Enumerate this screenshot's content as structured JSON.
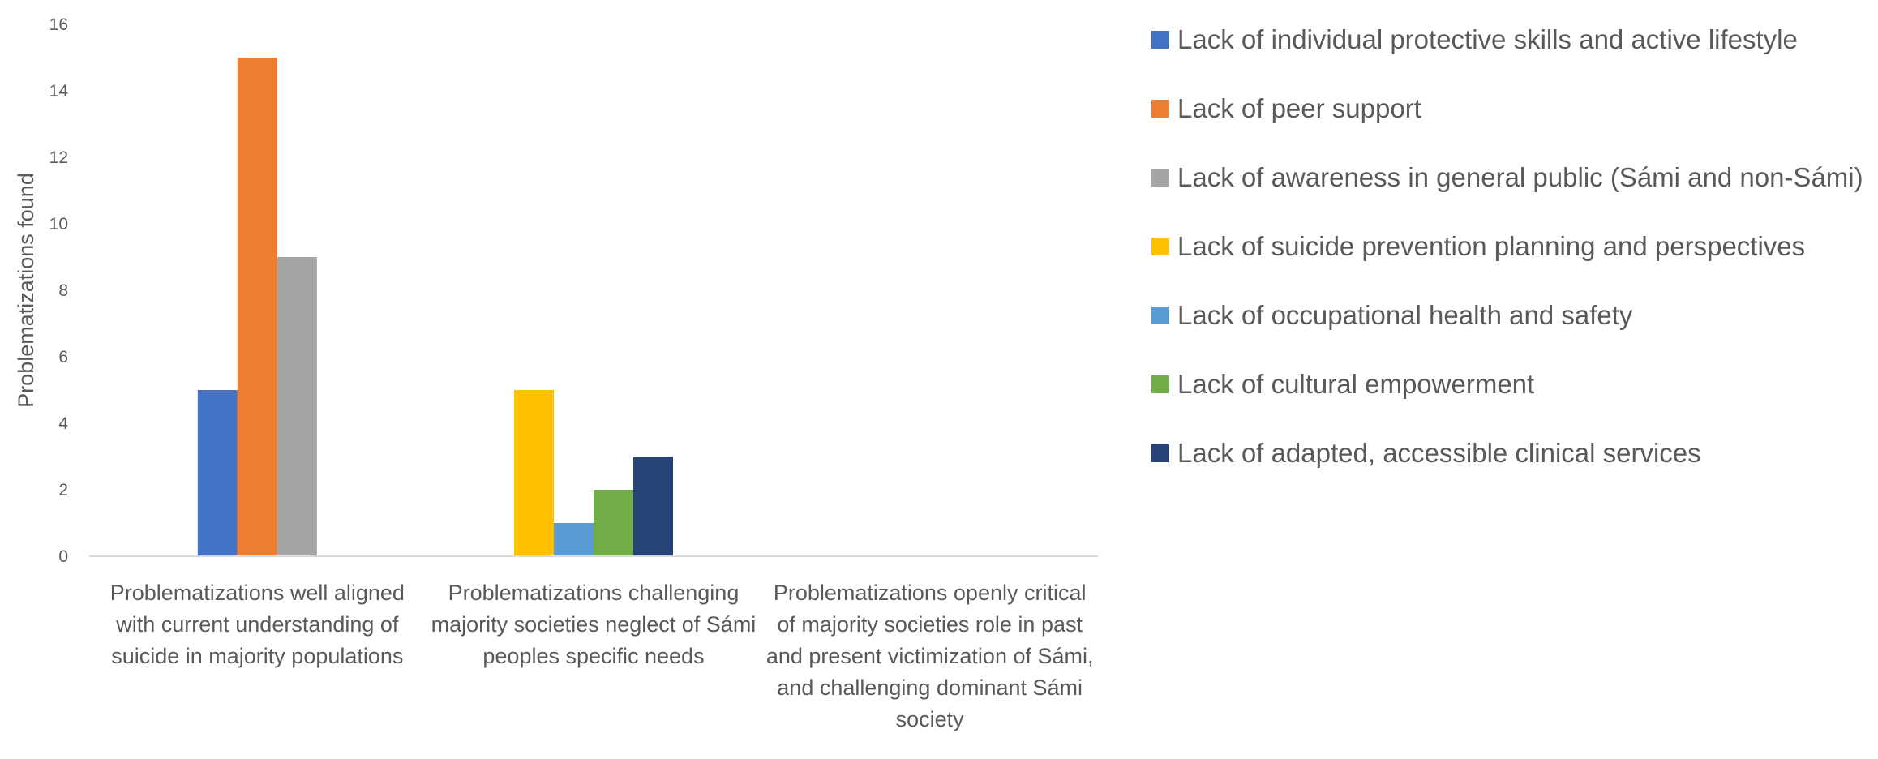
{
  "chart_data": {
    "type": "bar",
    "title": "",
    "xlabel": "",
    "ylabel": "Problematizations found",
    "ylim": [
      0,
      16
    ],
    "yticks": [
      0,
      2,
      4,
      6,
      8,
      10,
      12,
      14,
      16
    ],
    "grid": false,
    "legend_position": "right",
    "categories": [
      "Problematizations well aligned with current understanding of suicide in majority populations",
      "Problematizations challenging majority societies neglect of Sámi peoples specific needs",
      "Problematizations openly critical of majority societies role in past and present victimization of Sámi, and challenging dominant Sámi society"
    ],
    "series": [
      {
        "name": "Lack of individual protective skills and active lifestyle",
        "color": "#4472C4",
        "values": [
          5,
          0,
          0
        ]
      },
      {
        "name": "Lack of peer support",
        "color": "#ED7D31",
        "values": [
          15,
          0,
          0
        ]
      },
      {
        "name": "Lack of awareness in general public (Sámi and non-Sámi)",
        "color": "#A5A5A5",
        "values": [
          9,
          0,
          0
        ]
      },
      {
        "name": "Lack of suicide prevention planning and perspectives",
        "color": "#FFC000",
        "values": [
          0,
          5,
          0
        ]
      },
      {
        "name": "Lack of occupational health and safety",
        "color": "#5B9BD5",
        "values": [
          0,
          1,
          0
        ]
      },
      {
        "name": "Lack of cultural empowerment",
        "color": "#70AD47",
        "values": [
          0,
          2,
          0
        ]
      },
      {
        "name": "Lack of adapted, accessible clinical services",
        "color": "#264478",
        "values": [
          0,
          3,
          0
        ]
      }
    ]
  }
}
